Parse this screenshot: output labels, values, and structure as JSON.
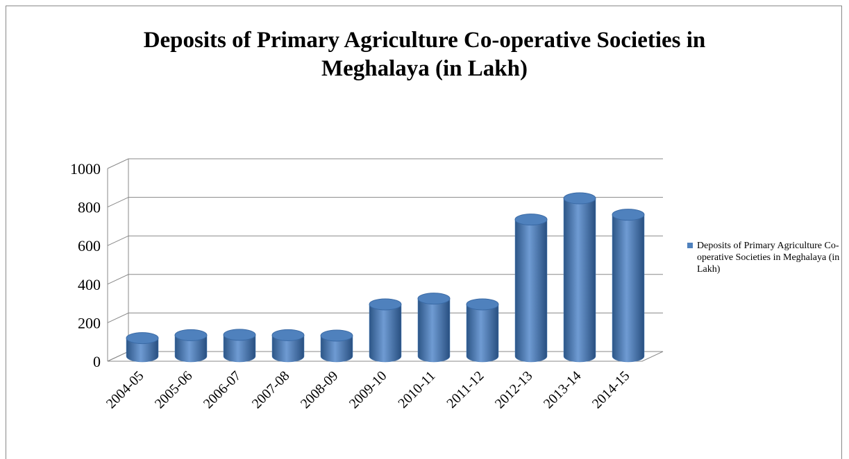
{
  "chart_data": {
    "type": "bar3d",
    "title": "Deposits of Primary Agriculture Co-operative Societies in Meghalaya (in Lakh)",
    "categories": [
      "2004-05",
      "2005-06",
      "2006-07",
      "2007-08",
      "2008-09",
      "2009-10",
      "2010-11",
      "2011-12",
      "2012-13",
      "2013-14",
      "2014-15"
    ],
    "series": [
      {
        "name": "Deposits of Primary Agriculture Co-operative Societies in Meghalaya (in Lakh)",
        "color": "#4f81bd",
        "values": [
          95,
          110,
          112,
          110,
          108,
          270,
          300,
          270,
          710,
          820,
          735
        ]
      }
    ],
    "ylim": [
      0,
      1000
    ],
    "yticks": [
      0,
      200,
      400,
      600,
      800,
      1000
    ],
    "grid": true,
    "legend": "right"
  }
}
